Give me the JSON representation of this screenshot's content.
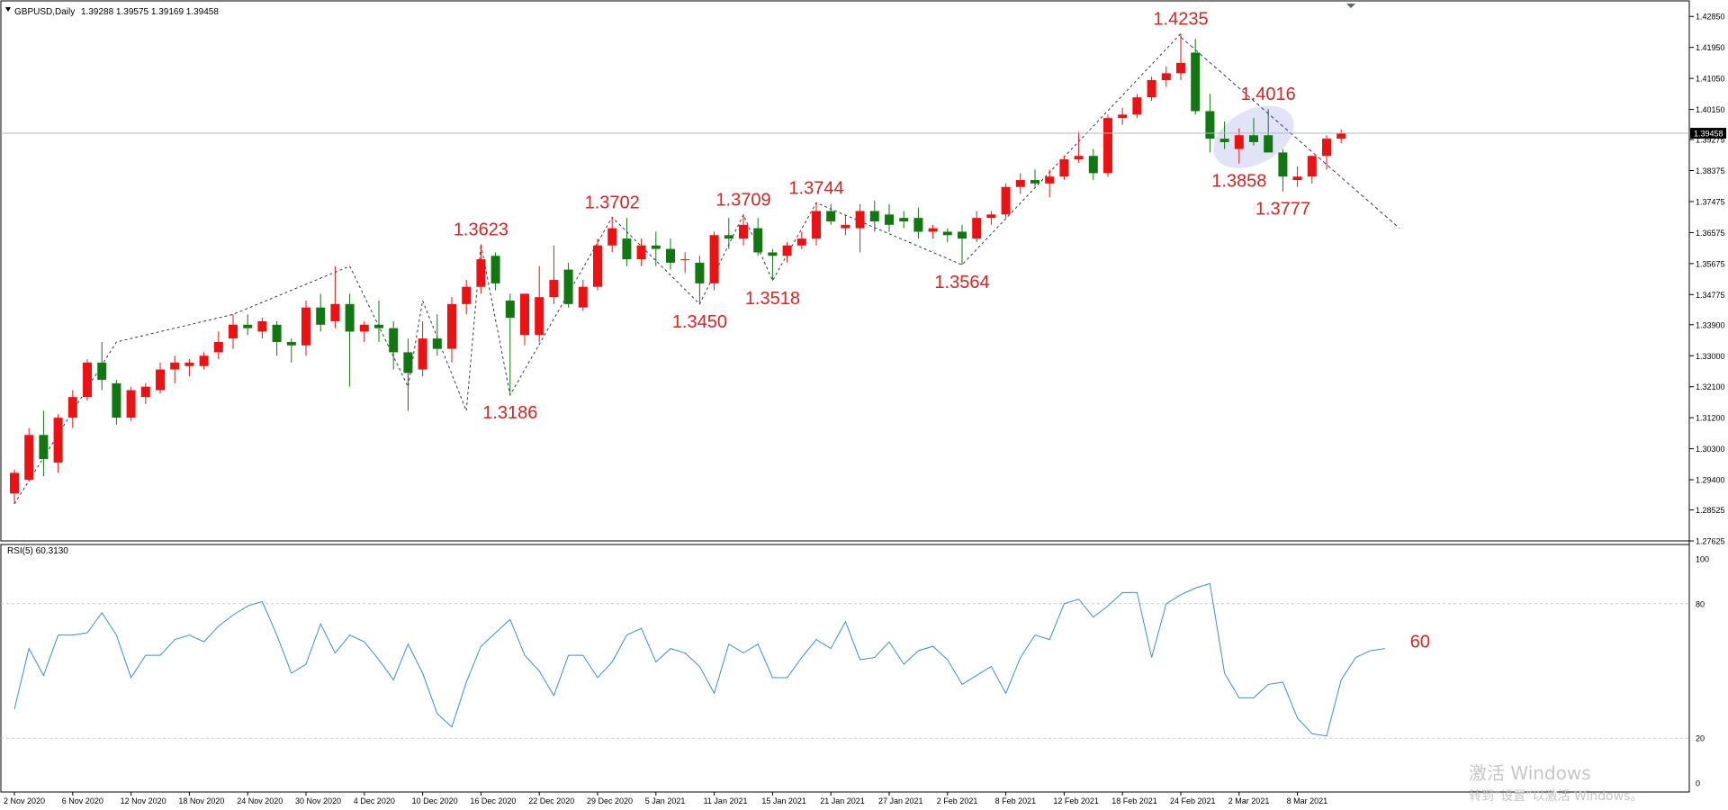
{
  "header": {
    "symbol": "GBPUSD,Daily",
    "ohlc": "1.39288 1.39575 1.39169 1.39458",
    "collapse_icon": "triangle-down-icon"
  },
  "rsi_header": {
    "label": "RSI(5) 60.3130"
  },
  "current_price_label": "1.39458",
  "watermark": {
    "line1": "激活 Windows",
    "line2": "转到“设置”以激活 Windows。"
  },
  "colors": {
    "bull": "#ee1111",
    "bear": "#117711",
    "annotation": "#dd2222",
    "rsi_line": "#3a8fd6",
    "grid": "#cccccc",
    "trendline": "#333399"
  },
  "chart_data": [
    {
      "type": "candlestick",
      "title": "GBPUSD,Daily",
      "x_tick_labels": [
        "2 Nov 2020",
        "6 Nov 2020",
        "12 Nov 2020",
        "18 Nov 2020",
        "24 Nov 2020",
        "30 Nov 2020",
        "4 Dec 2020",
        "10 Dec 2020",
        "16 Dec 2020",
        "22 Dec 2020",
        "29 Dec 2020",
        "5 Jan 2021",
        "11 Jan 2021",
        "15 Jan 2021",
        "21 Jan 2021",
        "27 Jan 2021",
        "2 Feb 2021",
        "8 Feb 2021",
        "12 Feb 2021",
        "18 Feb 2021",
        "24 Feb 2021",
        "2 Mar 2021",
        "8 Mar 2021"
      ],
      "y_tick_labels": [
        "1.42850",
        "1.41950",
        "1.41050",
        "1.40150",
        "1.39275",
        "1.38375",
        "1.37475",
        "1.36575",
        "1.35675",
        "1.34775",
        "1.33900",
        "1.33000",
        "1.32100",
        "1.31200",
        "1.30300",
        "1.29400",
        "1.28525",
        "1.27625"
      ],
      "ylim": [
        1.27625,
        1.433
      ],
      "current_price": 1.39458,
      "candles": [
        {
          "o": 1.29,
          "h": 1.297,
          "l": 1.287,
          "c": 1.296
        },
        {
          "o": 1.294,
          "h": 1.309,
          "l": 1.2935,
          "c": 1.307
        },
        {
          "o": 1.307,
          "h": 1.314,
          "l": 1.295,
          "c": 1.3
        },
        {
          "o": 1.299,
          "h": 1.313,
          "l": 1.296,
          "c": 1.312
        },
        {
          "o": 1.312,
          "h": 1.32,
          "l": 1.309,
          "c": 1.318
        },
        {
          "o": 1.318,
          "h": 1.329,
          "l": 1.317,
          "c": 1.328
        },
        {
          "o": 1.328,
          "h": 1.334,
          "l": 1.32,
          "c": 1.323
        },
        {
          "o": 1.322,
          "h": 1.323,
          "l": 1.31,
          "c": 1.312
        },
        {
          "o": 1.312,
          "h": 1.321,
          "l": 1.311,
          "c": 1.32
        },
        {
          "o": 1.318,
          "h": 1.322,
          "l": 1.316,
          "c": 1.321
        },
        {
          "o": 1.32,
          "h": 1.328,
          "l": 1.319,
          "c": 1.326
        },
        {
          "o": 1.326,
          "h": 1.33,
          "l": 1.322,
          "c": 1.328
        },
        {
          "o": 1.327,
          "h": 1.329,
          "l": 1.324,
          "c": 1.328
        },
        {
          "o": 1.327,
          "h": 1.331,
          "l": 1.326,
          "c": 1.33
        },
        {
          "o": 1.331,
          "h": 1.337,
          "l": 1.329,
          "c": 1.334
        },
        {
          "o": 1.335,
          "h": 1.342,
          "l": 1.332,
          "c": 1.339
        },
        {
          "o": 1.339,
          "h": 1.342,
          "l": 1.336,
          "c": 1.338
        },
        {
          "o": 1.337,
          "h": 1.341,
          "l": 1.335,
          "c": 1.34
        },
        {
          "o": 1.339,
          "h": 1.34,
          "l": 1.33,
          "c": 1.334
        },
        {
          "o": 1.334,
          "h": 1.335,
          "l": 1.328,
          "c": 1.333
        },
        {
          "o": 1.333,
          "h": 1.346,
          "l": 1.33,
          "c": 1.344
        },
        {
          "o": 1.344,
          "h": 1.348,
          "l": 1.337,
          "c": 1.339
        },
        {
          "o": 1.34,
          "h": 1.356,
          "l": 1.338,
          "c": 1.345
        },
        {
          "o": 1.345,
          "h": 1.348,
          "l": 1.321,
          "c": 1.337
        },
        {
          "o": 1.337,
          "h": 1.34,
          "l": 1.334,
          "c": 1.339
        },
        {
          "o": 1.339,
          "h": 1.346,
          "l": 1.334,
          "c": 1.338
        },
        {
          "o": 1.338,
          "h": 1.34,
          "l": 1.326,
          "c": 1.331
        },
        {
          "o": 1.331,
          "h": 1.335,
          "l": 1.314,
          "c": 1.325
        },
        {
          "o": 1.326,
          "h": 1.34,
          "l": 1.324,
          "c": 1.335
        },
        {
          "o": 1.335,
          "h": 1.342,
          "l": 1.33,
          "c": 1.332
        },
        {
          "o": 1.332,
          "h": 1.347,
          "l": 1.328,
          "c": 1.345
        },
        {
          "o": 1.345,
          "h": 1.352,
          "l": 1.342,
          "c": 1.35
        },
        {
          "o": 1.35,
          "h": 1.3623,
          "l": 1.348,
          "c": 1.358
        },
        {
          "o": 1.359,
          "h": 1.36,
          "l": 1.349,
          "c": 1.351
        },
        {
          "o": 1.346,
          "h": 1.348,
          "l": 1.3186,
          "c": 1.341
        },
        {
          "o": 1.336,
          "h": 1.348,
          "l": 1.333,
          "c": 1.348
        },
        {
          "o": 1.336,
          "h": 1.356,
          "l": 1.334,
          "c": 1.347
        },
        {
          "o": 1.347,
          "h": 1.362,
          "l": 1.345,
          "c": 1.352
        },
        {
          "o": 1.355,
          "h": 1.357,
          "l": 1.344,
          "c": 1.345
        },
        {
          "o": 1.344,
          "h": 1.352,
          "l": 1.343,
          "c": 1.35
        },
        {
          "o": 1.35,
          "h": 1.364,
          "l": 1.349,
          "c": 1.362
        },
        {
          "o": 1.362,
          "h": 1.3702,
          "l": 1.36,
          "c": 1.367
        },
        {
          "o": 1.364,
          "h": 1.37,
          "l": 1.356,
          "c": 1.358
        },
        {
          "o": 1.358,
          "h": 1.364,
          "l": 1.356,
          "c": 1.362
        },
        {
          "o": 1.362,
          "h": 1.366,
          "l": 1.356,
          "c": 1.361
        },
        {
          "o": 1.361,
          "h": 1.364,
          "l": 1.355,
          "c": 1.357
        },
        {
          "o": 1.358,
          "h": 1.36,
          "l": 1.354,
          "c": 1.358
        },
        {
          "o": 1.357,
          "h": 1.359,
          "l": 1.345,
          "c": 1.351
        },
        {
          "o": 1.351,
          "h": 1.366,
          "l": 1.349,
          "c": 1.365
        },
        {
          "o": 1.365,
          "h": 1.37,
          "l": 1.361,
          "c": 1.364
        },
        {
          "o": 1.364,
          "h": 1.3709,
          "l": 1.362,
          "c": 1.368
        },
        {
          "o": 1.367,
          "h": 1.37,
          "l": 1.359,
          "c": 1.36
        },
        {
          "o": 1.36,
          "h": 1.361,
          "l": 1.3518,
          "c": 1.359
        },
        {
          "o": 1.359,
          "h": 1.363,
          "l": 1.357,
          "c": 1.362
        },
        {
          "o": 1.362,
          "h": 1.366,
          "l": 1.361,
          "c": 1.364
        },
        {
          "o": 1.364,
          "h": 1.3744,
          "l": 1.362,
          "c": 1.372
        },
        {
          "o": 1.372,
          "h": 1.374,
          "l": 1.368,
          "c": 1.369
        },
        {
          "o": 1.367,
          "h": 1.371,
          "l": 1.365,
          "c": 1.368
        },
        {
          "o": 1.367,
          "h": 1.374,
          "l": 1.36,
          "c": 1.372
        },
        {
          "o": 1.372,
          "h": 1.375,
          "l": 1.366,
          "c": 1.369
        },
        {
          "o": 1.371,
          "h": 1.374,
          "l": 1.366,
          "c": 1.368
        },
        {
          "o": 1.37,
          "h": 1.372,
          "l": 1.367,
          "c": 1.369
        },
        {
          "o": 1.37,
          "h": 1.373,
          "l": 1.364,
          "c": 1.366
        },
        {
          "o": 1.366,
          "h": 1.368,
          "l": 1.364,
          "c": 1.367
        },
        {
          "o": 1.366,
          "h": 1.367,
          "l": 1.363,
          "c": 1.365
        },
        {
          "o": 1.366,
          "h": 1.368,
          "l": 1.3564,
          "c": 1.364
        },
        {
          "o": 1.364,
          "h": 1.372,
          "l": 1.363,
          "c": 1.37
        },
        {
          "o": 1.37,
          "h": 1.372,
          "l": 1.368,
          "c": 1.371
        },
        {
          "o": 1.371,
          "h": 1.38,
          "l": 1.37,
          "c": 1.379
        },
        {
          "o": 1.379,
          "h": 1.383,
          "l": 1.377,
          "c": 1.381
        },
        {
          "o": 1.381,
          "h": 1.384,
          "l": 1.379,
          "c": 1.38
        },
        {
          "o": 1.38,
          "h": 1.384,
          "l": 1.376,
          "c": 1.382
        },
        {
          "o": 1.382,
          "h": 1.388,
          "l": 1.381,
          "c": 1.387
        },
        {
          "o": 1.387,
          "h": 1.395,
          "l": 1.386,
          "c": 1.388
        },
        {
          "o": 1.388,
          "h": 1.39,
          "l": 1.381,
          "c": 1.383
        },
        {
          "o": 1.383,
          "h": 1.4,
          "l": 1.382,
          "c": 1.399
        },
        {
          "o": 1.399,
          "h": 1.402,
          "l": 1.397,
          "c": 1.4
        },
        {
          "o": 1.4,
          "h": 1.406,
          "l": 1.399,
          "c": 1.405
        },
        {
          "o": 1.405,
          "h": 1.411,
          "l": 1.404,
          "c": 1.41
        },
        {
          "o": 1.41,
          "h": 1.414,
          "l": 1.408,
          "c": 1.412
        },
        {
          "o": 1.412,
          "h": 1.4235,
          "l": 1.41,
          "c": 1.415
        },
        {
          "o": 1.418,
          "h": 1.422,
          "l": 1.4,
          "c": 1.401
        },
        {
          "o": 1.401,
          "h": 1.406,
          "l": 1.389,
          "c": 1.393
        },
        {
          "o": 1.393,
          "h": 1.398,
          "l": 1.39,
          "c": 1.392
        },
        {
          "o": 1.39,
          "h": 1.396,
          "l": 1.3858,
          "c": 1.394
        },
        {
          "o": 1.394,
          "h": 1.399,
          "l": 1.391,
          "c": 1.392
        },
        {
          "o": 1.394,
          "h": 1.4016,
          "l": 1.389,
          "c": 1.389
        },
        {
          "o": 1.389,
          "h": 1.39,
          "l": 1.3777,
          "c": 1.382
        },
        {
          "o": 1.381,
          "h": 1.385,
          "l": 1.379,
          "c": 1.382
        },
        {
          "o": 1.382,
          "h": 1.388,
          "l": 1.38,
          "c": 1.388
        },
        {
          "o": 1.388,
          "h": 1.394,
          "l": 1.384,
          "c": 1.393
        },
        {
          "o": 1.393,
          "h": 1.3957,
          "l": 1.3917,
          "c": 1.3946
        }
      ],
      "annotations": [
        {
          "text": "1.4235",
          "index": 80,
          "value": 1.4235,
          "pos": "above"
        },
        {
          "text": "1.4016",
          "index": 86,
          "value": 1.4016,
          "pos": "above"
        },
        {
          "text": "1.3858",
          "index": 84,
          "value": 1.3858,
          "pos": "below"
        },
        {
          "text": "1.3777",
          "index": 87,
          "value": 1.3777,
          "pos": "below"
        },
        {
          "text": "1.3744",
          "index": 55,
          "value": 1.3744,
          "pos": "above"
        },
        {
          "text": "1.3709",
          "index": 50,
          "value": 1.3709,
          "pos": "above"
        },
        {
          "text": "1.3702",
          "index": 41,
          "value": 1.3702,
          "pos": "above"
        },
        {
          "text": "1.3623",
          "index": 32,
          "value": 1.3623,
          "pos": "above"
        },
        {
          "text": "1.3564",
          "index": 65,
          "value": 1.3564,
          "pos": "below"
        },
        {
          "text": "1.3518",
          "index": 52,
          "value": 1.3518,
          "pos": "below"
        },
        {
          "text": "1.3450",
          "index": 47,
          "value": 1.345,
          "pos": "below"
        },
        {
          "text": "1.3186",
          "index": 34,
          "value": 1.3186,
          "pos": "below"
        }
      ],
      "zigzag": [
        {
          "index": 0,
          "value": 1.287
        },
        {
          "index": 7,
          "value": 1.334
        },
        {
          "index": 15,
          "value": 1.342
        },
        {
          "index": 23,
          "value": 1.356
        },
        {
          "index": 27,
          "value": 1.321
        },
        {
          "index": 28,
          "value": 1.346
        },
        {
          "index": 31,
          "value": 1.314
        },
        {
          "index": 32,
          "value": 1.3623
        },
        {
          "index": 34,
          "value": 1.3186
        },
        {
          "index": 41,
          "value": 1.3702
        },
        {
          "index": 47,
          "value": 1.345
        },
        {
          "index": 50,
          "value": 1.3709
        },
        {
          "index": 52,
          "value": 1.3518
        },
        {
          "index": 55,
          "value": 1.3744
        },
        {
          "index": 65,
          "value": 1.3564
        },
        {
          "index": 80,
          "value": 1.4235
        }
      ],
      "trendline": {
        "start": {
          "index": 80,
          "value": 1.4225
        },
        "end": {
          "index": 95,
          "value": 1.367
        }
      },
      "ellipse": {
        "index": 85,
        "value": 1.3935
      }
    },
    {
      "type": "line",
      "title": "RSI(5) 60.3130",
      "ylim": [
        0,
        100
      ],
      "y_tick_labels": [
        "100",
        "80",
        "20",
        "0"
      ],
      "levels": [
        80,
        20
      ],
      "annotation": "60",
      "values": [
        33,
        60,
        48,
        66,
        66,
        67,
        76,
        66,
        47,
        57,
        57,
        64,
        66,
        63,
        70,
        75,
        79,
        81,
        66,
        49,
        53,
        71,
        58,
        66,
        63,
        55,
        46,
        62,
        49,
        31,
        25,
        45,
        61,
        67,
        73,
        57,
        50,
        39,
        57,
        57,
        47,
        54,
        66,
        69,
        54,
        60,
        58,
        52,
        40,
        62,
        58,
        62,
        47,
        47,
        56,
        64,
        60,
        72,
        55,
        56,
        63,
        53,
        59,
        61,
        55,
        44,
        48,
        52,
        40,
        56,
        66,
        64,
        80,
        82,
        74,
        79,
        85,
        85,
        56,
        80,
        84,
        87,
        89,
        49,
        38,
        38,
        44,
        45,
        29,
        22,
        21,
        46,
        56,
        59,
        60
      ]
    }
  ]
}
